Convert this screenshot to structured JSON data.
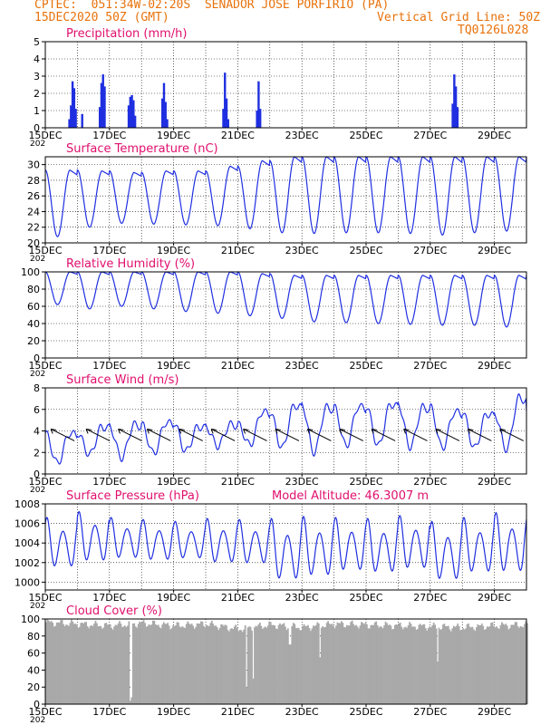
{
  "header": {
    "line1": "CPTEC:  051:34W-02:20S  SENADOR JOSE PORFIRIO (PA)",
    "line2_left": "15DEC2020 50Z (GMT)",
    "line2_right": "Vertical Grid Line: 50Z",
    "code": "TQ0126L028"
  },
  "colors": {
    "header": "#e8720c",
    "title": "#e0106e",
    "line": "#1f2fe0",
    "bar": "#1f2fe0",
    "cloud": "#a9a9a9",
    "arrow": "#000000"
  },
  "x_axis": {
    "labels": [
      "15DEC",
      "17DEC",
      "19DEC",
      "21DEC",
      "23DEC",
      "25DEC",
      "27DEC",
      "29DEC"
    ],
    "label_days": [
      0,
      2,
      4,
      6,
      8,
      10,
      12,
      14
    ],
    "range_days": [
      0,
      15
    ],
    "cut_label": "202"
  },
  "chart_data": [
    {
      "id": "precip",
      "type": "bar",
      "title": "Precipitation (mm/h)",
      "ylabel": "mm/h",
      "ylim": [
        0,
        5
      ],
      "yticks": [
        0,
        1,
        2,
        3,
        4,
        5
      ],
      "x": [
        0.75,
        0.8,
        0.85,
        0.9,
        0.95,
        1.15,
        1.7,
        1.75,
        1.8,
        1.85,
        2.6,
        2.65,
        2.7,
        2.75,
        2.8,
        3.65,
        3.7,
        3.75,
        3.8,
        5.55,
        5.6,
        5.65,
        5.7,
        6.6,
        6.65,
        6.7,
        12.7,
        12.75,
        12.8,
        12.85
      ],
      "values": [
        0.5,
        1.3,
        2.7,
        2.3,
        1.1,
        0.8,
        1.2,
        2.6,
        3.1,
        2.4,
        1.3,
        1.8,
        1.9,
        1.6,
        0.7,
        1.7,
        2.6,
        1.5,
        0.5,
        1.1,
        3.2,
        1.7,
        0.5,
        1.0,
        2.7,
        1.1,
        1.4,
        3.1,
        2.4,
        1.2
      ]
    },
    {
      "id": "temp",
      "type": "line",
      "title": "Surface Temperature (nC)",
      "ylabel": "nC",
      "ylim": [
        20,
        31
      ],
      "yticks": [
        20,
        22,
        24,
        26,
        28,
        30
      ],
      "days": [
        0,
        1,
        2,
        3,
        4,
        5,
        6,
        7,
        8,
        9,
        10,
        11,
        12,
        13,
        14
      ],
      "max": [
        29.3,
        29.2,
        29.0,
        29.2,
        29.2,
        29.8,
        30.5,
        31,
        31,
        31,
        31,
        31,
        31,
        31,
        31
      ],
      "min": [
        20.8,
        22.0,
        22.5,
        22.4,
        22.3,
        22.2,
        21.8,
        21.3,
        21.2,
        21.3,
        21.3,
        21.2,
        21.0,
        21.3,
        21.5
      ]
    },
    {
      "id": "rh",
      "type": "line",
      "title": "Relative Humidity (%)",
      "ylabel": "%",
      "ylim": [
        0,
        100
      ],
      "yticks": [
        0,
        20,
        40,
        60,
        80,
        100
      ],
      "days": [
        0,
        1,
        2,
        3,
        4,
        5,
        6,
        7,
        8,
        9,
        10,
        11,
        12,
        13,
        14
      ],
      "max": [
        100,
        100,
        100,
        100,
        100,
        100,
        98,
        96,
        96,
        96,
        96,
        96,
        96,
        96,
        96
      ],
      "min": [
        62,
        57,
        60,
        57,
        54,
        52,
        49,
        46,
        42,
        41,
        40,
        39,
        38,
        38,
        36
      ]
    },
    {
      "id": "wind",
      "type": "line",
      "title": "Surface Wind (m/s)",
      "ylabel": "m/s",
      "ylim": [
        0,
        8
      ],
      "yticks": [
        0,
        2,
        4,
        6,
        8
      ],
      "days": [
        0,
        1,
        2,
        3,
        4,
        5,
        6,
        7,
        8,
        9,
        10,
        11,
        12,
        13,
        14
      ],
      "max": [
        3.8,
        4.4,
        4.6,
        4.8,
        4.4,
        4.6,
        5.8,
        6.4,
        6.2,
        6.3,
        6.5,
        6.2,
        5.8,
        5.6,
        7.1
      ],
      "min": [
        1.0,
        1.8,
        1.5,
        1.9,
        2.1,
        2.6,
        2.7,
        2.4,
        2.0,
        2.6,
        2.6,
        2.5,
        2.4,
        2.4,
        2.3
      ],
      "arrows_days": [
        0.4,
        1.5,
        2.5,
        3.4,
        4.4,
        5.4,
        6.4,
        7.4,
        8.4,
        9.4,
        10.4,
        11.4,
        12.4,
        13.4,
        14.4
      ]
    },
    {
      "id": "pres",
      "type": "line",
      "title": "Surface Pressure (hPa)",
      "annotation": "Model Altitude: 46.3007 m",
      "ylabel": "hPa",
      "ylim": [
        999.2,
        1008
      ],
      "yticks": [
        1000,
        1002,
        1004,
        1006,
        1008
      ],
      "days": [
        0,
        1,
        2,
        3,
        4,
        5,
        6,
        7,
        8,
        9,
        10,
        11,
        12,
        13,
        14
      ],
      "max": [
        1006.6,
        1007.2,
        1006.6,
        1006.4,
        1006.2,
        1006.5,
        1006.4,
        1006.5,
        1006.7,
        1006.6,
        1006.5,
        1006.8,
        1006.2,
        1006.6,
        1007.1
      ],
      "min": [
        1001.0,
        1001.6,
        1002.0,
        1001.8,
        1002.0,
        1001.5,
        1001.4,
        999.6,
        1000.0,
        1000.6,
        1000.4,
        1000.8,
        999.6,
        1000.4,
        1000.4
      ]
    },
    {
      "id": "cloud",
      "type": "bar",
      "title": "Cloud Cover (%)",
      "ylabel": "%",
      "ylim": [
        0,
        100
      ],
      "yticks": [
        0,
        20,
        40,
        60,
        80,
        100
      ],
      "days": [
        0,
        1,
        2,
        3,
        4,
        5,
        6,
        7,
        8,
        9,
        10,
        11,
        12,
        13,
        14,
        15
      ],
      "level": [
        96,
        94,
        92,
        95,
        92,
        94,
        88,
        93,
        90,
        94,
        93,
        92,
        91,
        90,
        92,
        93
      ],
      "dips_day": [
        2.62,
        2.66,
        6.25,
        6.45,
        7.6,
        8.55,
        12.2
      ],
      "dips_value": [
        4,
        8,
        20,
        30,
        70,
        55,
        50
      ]
    }
  ]
}
